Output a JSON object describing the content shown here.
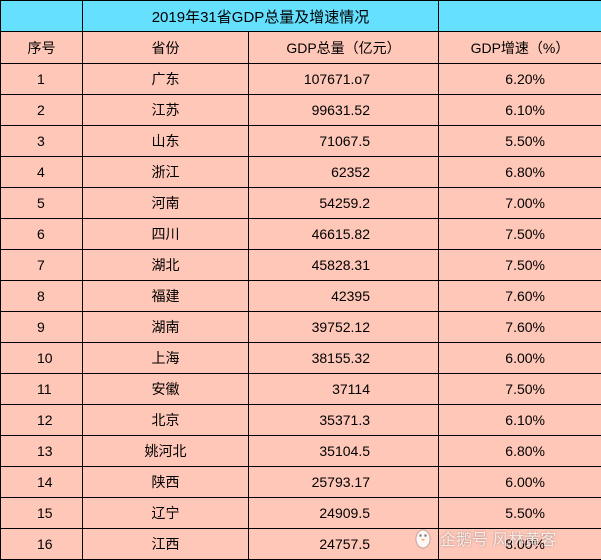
{
  "title": "2019年31省GDP总量及增速情况",
  "headers": {
    "rank": "序号",
    "province": "省份",
    "gdp": "GDP总量（亿元）",
    "growth": "GDP增速（%）"
  },
  "rows": [
    {
      "rank": "1",
      "province": "广东",
      "gdp": "107671.o7",
      "growth": "6.20%"
    },
    {
      "rank": "2",
      "province": "江苏",
      "gdp": "99631.52",
      "growth": "6.10%"
    },
    {
      "rank": "3",
      "province": "山东",
      "gdp": "71067.5",
      "growth": "5.50%"
    },
    {
      "rank": "4",
      "province": "浙江",
      "gdp": "62352",
      "growth": "6.80%"
    },
    {
      "rank": "5",
      "province": "河南",
      "gdp": "54259.2",
      "growth": "7.00%"
    },
    {
      "rank": "6",
      "province": "四川",
      "gdp": "46615.82",
      "growth": "7.50%"
    },
    {
      "rank": "7",
      "province": "湖北",
      "gdp": "45828.31",
      "growth": "7.50%"
    },
    {
      "rank": "8",
      "province": "福建",
      "gdp": "42395",
      "growth": "7.60%"
    },
    {
      "rank": "9",
      "province": "湖南",
      "gdp": "39752.12",
      "growth": "7.60%"
    },
    {
      "rank": "10",
      "province": "上海",
      "gdp": "38155.32",
      "growth": "6.00%"
    },
    {
      "rank": "11",
      "province": "安徽",
      "gdp": "37114",
      "growth": "7.50%"
    },
    {
      "rank": "12",
      "province": "北京",
      "gdp": "35371.3",
      "growth": "6.10%"
    },
    {
      "rank": "13",
      "province": "姚河北",
      "gdp": "35104.5",
      "growth": "6.80%"
    },
    {
      "rank": "14",
      "province": "陕西",
      "gdp": "25793.17",
      "growth": "6.00%"
    },
    {
      "rank": "15",
      "province": "辽宁",
      "gdp": "24909.5",
      "growth": "5.50%"
    },
    {
      "rank": "16",
      "province": "江西",
      "gdp": "24757.5",
      "growth": "8.00%"
    }
  ],
  "watermark": {
    "text": "企鹅号 风林黄客",
    "logo_icon": "penguin-logo-icon"
  },
  "colors": {
    "title_bg": "#66e0ff",
    "row_bg": "#ffc7b8",
    "border": "#000000"
  }
}
